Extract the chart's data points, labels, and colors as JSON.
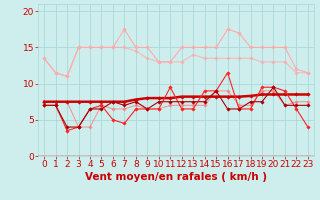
{
  "x": [
    0,
    1,
    2,
    3,
    4,
    5,
    6,
    7,
    8,
    9,
    10,
    11,
    12,
    13,
    14,
    15,
    16,
    17,
    18,
    19,
    20,
    21,
    22,
    23
  ],
  "series": [
    {
      "color": "#ffaaaa",
      "linewidth": 0.8,
      "marker": "D",
      "markersize": 1.8,
      "alpha": 1.0,
      "values": [
        13.5,
        11.5,
        11.0,
        15.0,
        15.0,
        15.0,
        15.0,
        17.5,
        15.0,
        15.0,
        13.0,
        13.0,
        15.0,
        15.0,
        15.0,
        15.0,
        17.5,
        17.0,
        15.0,
        15.0,
        15.0,
        15.0,
        12.0,
        11.5
      ]
    },
    {
      "color": "#ffaaaa",
      "linewidth": 0.8,
      "marker": "D",
      "markersize": 1.8,
      "alpha": 0.75,
      "values": [
        13.5,
        11.5,
        11.0,
        15.0,
        15.0,
        15.0,
        15.0,
        15.0,
        14.5,
        13.5,
        13.0,
        13.0,
        13.0,
        14.0,
        13.5,
        13.5,
        13.5,
        13.5,
        13.5,
        13.0,
        13.0,
        13.0,
        11.5,
        11.5
      ]
    },
    {
      "color": "#ff7777",
      "linewidth": 0.8,
      "marker": "D",
      "markersize": 1.8,
      "alpha": 0.7,
      "values": [
        7.5,
        7.5,
        7.5,
        4.0,
        4.0,
        7.0,
        6.5,
        6.5,
        7.0,
        6.5,
        6.5,
        7.0,
        7.0,
        7.0,
        7.0,
        9.0,
        9.0,
        7.0,
        7.0,
        9.0,
        9.0,
        7.0,
        7.5,
        7.5
      ]
    },
    {
      "color": "#cc0000",
      "linewidth": 1.8,
      "marker": "D",
      "markersize": 1.8,
      "alpha": 1.0,
      "values": [
        7.5,
        7.5,
        7.5,
        7.5,
        7.5,
        7.5,
        7.5,
        7.5,
        7.8,
        8.0,
        8.0,
        8.0,
        8.2,
        8.2,
        8.2,
        8.2,
        8.2,
        8.2,
        8.3,
        8.5,
        8.5,
        8.5,
        8.5,
        8.5
      ]
    },
    {
      "color": "#ff2222",
      "linewidth": 0.8,
      "marker": "D",
      "markersize": 1.8,
      "alpha": 1.0,
      "values": [
        7.0,
        7.0,
        3.5,
        4.0,
        6.5,
        7.0,
        5.0,
        4.5,
        6.5,
        6.5,
        6.5,
        9.5,
        6.5,
        6.5,
        9.0,
        9.0,
        11.5,
        6.5,
        6.5,
        9.5,
        9.5,
        9.0,
        6.5,
        4.0
      ]
    },
    {
      "color": "#aa0000",
      "linewidth": 0.8,
      "marker": "D",
      "markersize": 1.8,
      "alpha": 1.0,
      "values": [
        7.0,
        7.0,
        4.0,
        4.0,
        6.5,
        6.5,
        7.5,
        7.0,
        7.5,
        6.5,
        7.5,
        7.5,
        7.5,
        7.5,
        7.5,
        9.0,
        6.5,
        6.5,
        7.5,
        7.5,
        9.5,
        7.0,
        7.0,
        7.0
      ]
    }
  ],
  "xlabel": "Vent moyen/en rafales ( km/h )",
  "xlim": [
    -0.5,
    23.5
  ],
  "ylim": [
    0,
    21
  ],
  "yticks": [
    0,
    5,
    10,
    15,
    20
  ],
  "xticks": [
    0,
    1,
    2,
    3,
    4,
    5,
    6,
    7,
    8,
    9,
    10,
    11,
    12,
    13,
    14,
    15,
    16,
    17,
    18,
    19,
    20,
    21,
    22,
    23
  ],
  "bg_color": "#ceeeed",
  "grid_color": "#a8d8d8",
  "xlabel_color": "#cc0000",
  "xlabel_fontsize": 7.5,
  "tick_color": "#cc0000",
  "tick_fontsize": 6.5,
  "arrow_row": "→↘→↘↘↘↘↘←←←←←←←←←←←←←←↲→→"
}
